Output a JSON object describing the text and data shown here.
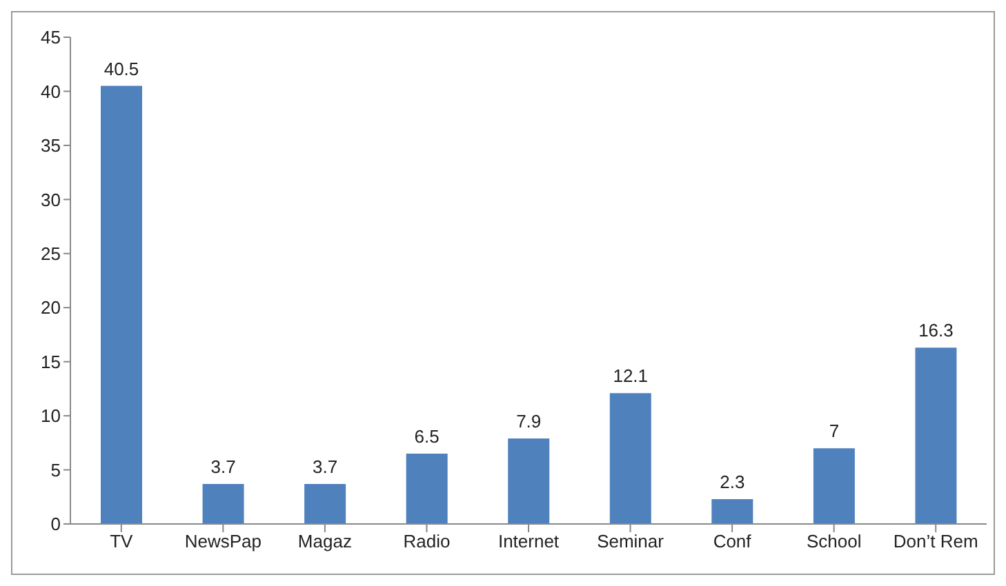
{
  "chart_data": {
    "type": "bar",
    "categories": [
      "TV",
      "NewsPap",
      "Magaz",
      "Radio",
      "Internet",
      "Seminar",
      "Conf",
      "School",
      "Don’t Rem"
    ],
    "values": [
      40.5,
      3.7,
      3.7,
      6.5,
      7.9,
      12.1,
      2.3,
      7,
      16.3
    ],
    "color": "#4f81bd",
    "ylim": [
      0,
      45
    ],
    "yticks": [
      0,
      5,
      10,
      15,
      20,
      25,
      30,
      35,
      40,
      45
    ],
    "grid": false,
    "legend": false,
    "data_labels": true
  }
}
